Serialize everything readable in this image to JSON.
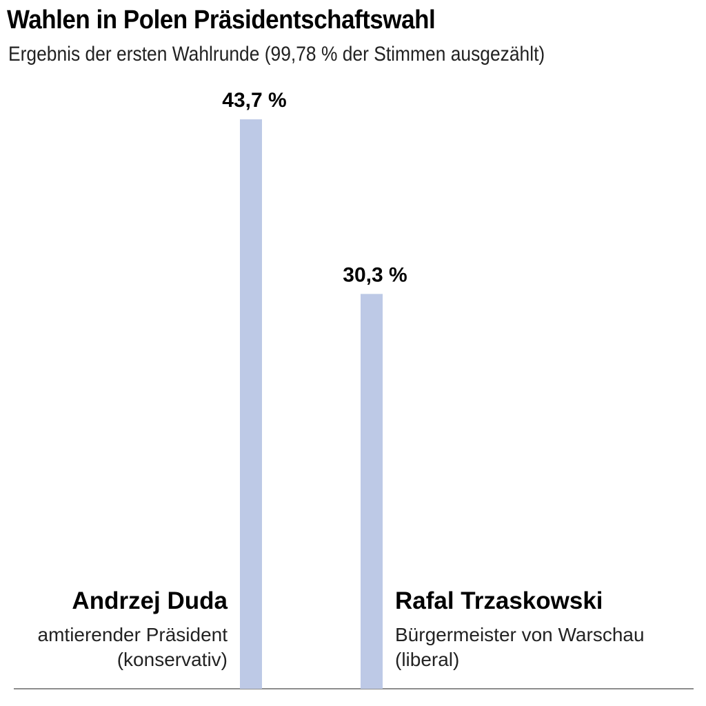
{
  "chart_data": {
    "type": "bar",
    "title": "Wahlen in Polen Präsidentschaftswahl",
    "subtitle": "Ergebnis der ersten Wahlrunde (99,78 % der Stimmen ausgezählt)",
    "categories": [
      "Andrzej Duda",
      "Rafal Trzaskowski"
    ],
    "values": [
      43.7,
      30.3
    ],
    "value_labels": [
      "43,7 %",
      "30,3 %"
    ],
    "descriptions": [
      [
        "amtierender Präsident",
        "(konservativ)"
      ],
      [
        "Bürgermeister von Warschau",
        "(liberal)"
      ]
    ],
    "xlabel": "",
    "ylabel": "",
    "ylim": [
      0,
      50
    ],
    "grid": false,
    "colors": {
      "bar": "#bdc9e6",
      "baseline": "#8c8c8c",
      "text": "#000000"
    }
  }
}
